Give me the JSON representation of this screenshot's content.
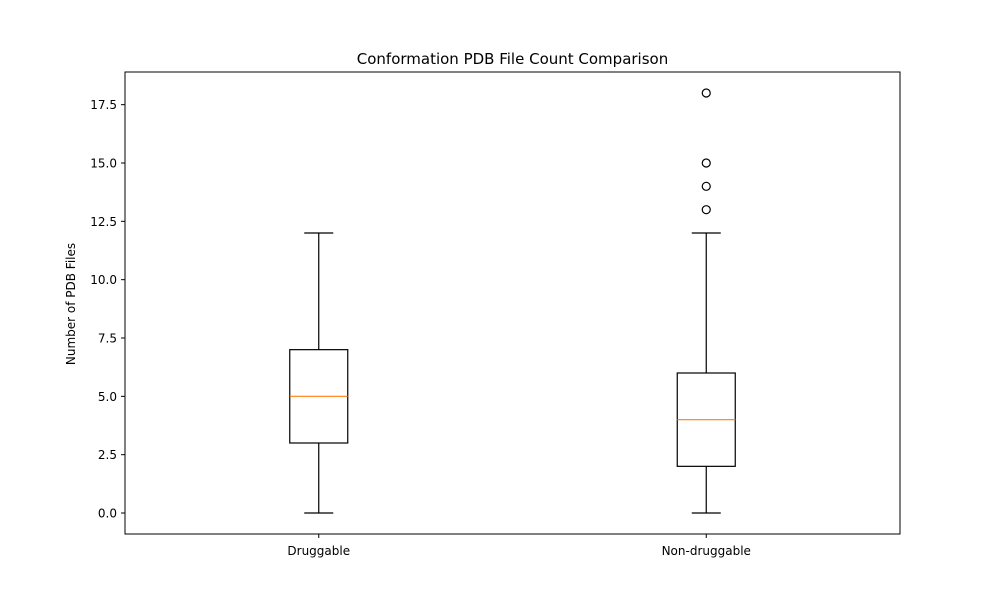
{
  "chart_data": {
    "type": "box",
    "title": "Conformation PDB File Count Comparison",
    "xlabel": "",
    "ylabel": "Number of PDB Files",
    "ylim": [
      -0.9,
      18.9
    ],
    "yticks": [
      0.0,
      2.5,
      5.0,
      7.5,
      10.0,
      12.5,
      15.0,
      17.5
    ],
    "ytick_labels": [
      "0.0",
      "2.5",
      "5.0",
      "7.5",
      "10.0",
      "12.5",
      "15.0",
      "17.5"
    ],
    "grid": false,
    "categories": [
      "Druggable",
      "Non-druggable"
    ],
    "boxes": [
      {
        "category": "Druggable",
        "whisker_low": 0,
        "q1": 3,
        "median": 5,
        "q3": 7,
        "whisker_high": 12,
        "outliers": []
      },
      {
        "category": "Non-druggable",
        "whisker_low": 0,
        "q1": 2,
        "median": 4,
        "q3": 6,
        "whisker_high": 12,
        "outliers": [
          13,
          14,
          15,
          18
        ]
      }
    ],
    "colors": {
      "box": "#000000",
      "median": "#ff7f0e",
      "outlier": "#000000"
    }
  }
}
